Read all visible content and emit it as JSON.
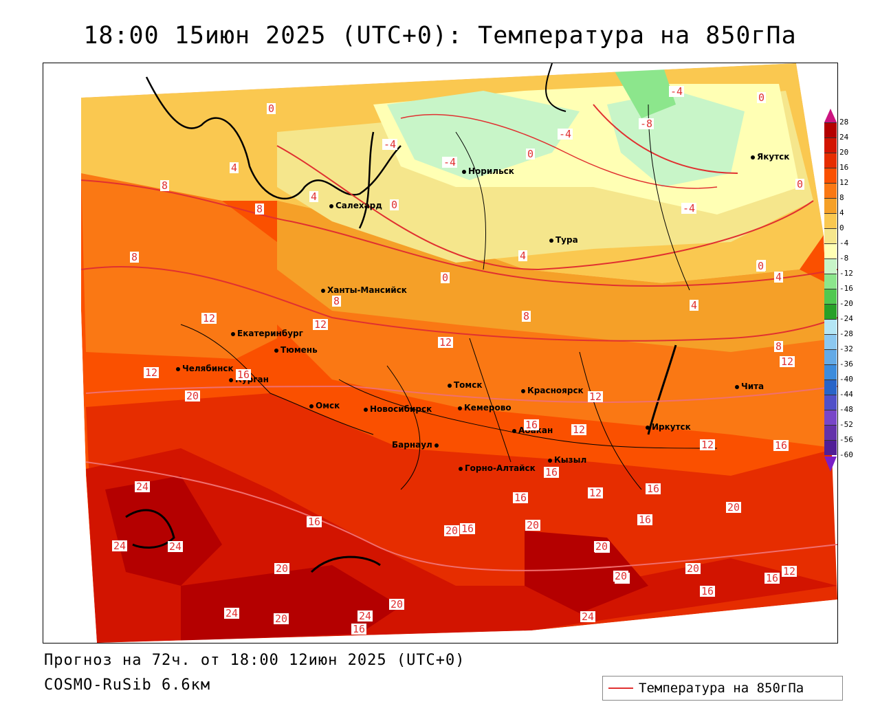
{
  "title": "18:00 15июн 2025 (UTC+0): Температура на 850гПа",
  "footer": {
    "forecast": "Прогноз на 72ч. от 18:00 12июн 2025 (UTC+0)",
    "model": "COSMO-RuSib 6.6км"
  },
  "legend": {
    "label": "Температура на 850гПа",
    "line_color": "#e03030"
  },
  "colorbar": {
    "ticks": [
      "28",
      "24",
      "20",
      "16",
      "12",
      "8",
      "4",
      "0",
      "-4",
      "-8",
      "-12",
      "-16",
      "-20",
      "-24",
      "-28",
      "-32",
      "-36",
      "-40",
      "-44",
      "-48",
      "-52",
      "-56",
      "-60"
    ],
    "colors": [
      "#b40000",
      "#d21400",
      "#e62d00",
      "#fa5000",
      "#fa7814",
      "#f5a028",
      "#fac850",
      "#f5e68c",
      "#ffffb4",
      "#c8f5c8",
      "#8ce68c",
      "#50c850",
      "#28a028",
      "#b4e6f5",
      "#8cc8f0",
      "#64aae6",
      "#3c8cdc",
      "#2864c8",
      "#5050c8",
      "#7846c8",
      "#6432aa",
      "#501e96"
    ]
  },
  "cities": [
    {
      "name": "Норильск"
    },
    {
      "name": "Якутск"
    },
    {
      "name": "Салехард"
    },
    {
      "name": "Тура"
    },
    {
      "name": "Ханты-Мансийск"
    },
    {
      "name": "Екатеринбург"
    },
    {
      "name": "Тюмень"
    },
    {
      "name": "Челябинск"
    },
    {
      "name": "Курган"
    },
    {
      "name": "Омск"
    },
    {
      "name": "Новосибирск"
    },
    {
      "name": "Томск"
    },
    {
      "name": "Кемерово"
    },
    {
      "name": "Красноярск"
    },
    {
      "name": "Абакан"
    },
    {
      "name": "Барнаул"
    },
    {
      "name": "Горно-Алтайск"
    },
    {
      "name": "Кызыл"
    },
    {
      "name": "Иркутск"
    },
    {
      "name": "Чита"
    }
  ],
  "contour_labels": [
    "0",
    "0",
    "0",
    "0",
    "-4",
    "-4",
    "-8",
    "-4",
    "-4",
    "-4",
    "0",
    "0",
    "0",
    "4",
    "4",
    "8",
    "8",
    "8",
    "4",
    "4",
    "0",
    "8",
    "8",
    "12",
    "12",
    "12",
    "4",
    "8",
    "12",
    "12",
    "16",
    "20",
    "12",
    "16",
    "16",
    "12",
    "12",
    "16",
    "12",
    "16",
    "16",
    "20",
    "24",
    "24",
    "24",
    "16",
    "20",
    "20",
    "16",
    "20",
    "20",
    "16",
    "20",
    "16",
    "20",
    "20",
    "24",
    "20",
    "24",
    "20",
    "16",
    "24",
    "16",
    "12",
    "20"
  ]
}
